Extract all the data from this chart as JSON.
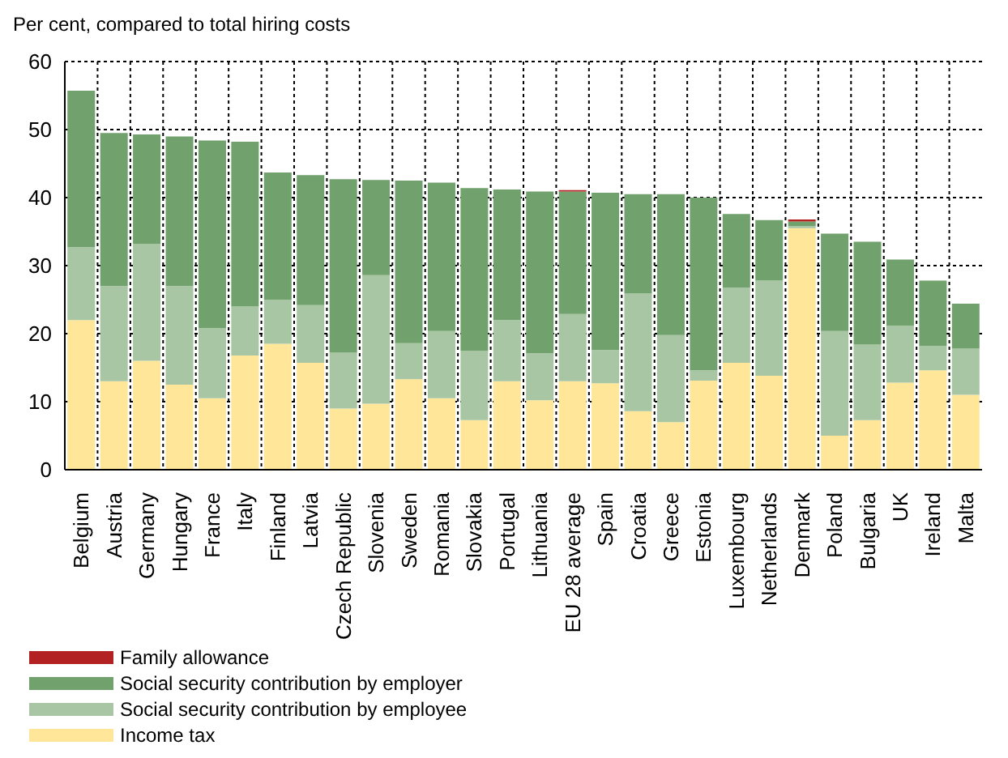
{
  "chart_data": {
    "type": "bar",
    "stacked": true,
    "ylabel": "Per cent, compared to total hiring costs",
    "categories": [
      "Belgium",
      "Austria",
      "Germany",
      "Hungary",
      "France",
      "Italy",
      "Finland",
      "Latvia",
      "Czech Republic",
      "Slovenia",
      "Sweden",
      "Romania",
      "Slovakia",
      "Portugal",
      "Lithuania",
      "EU 28 average",
      "Spain",
      "Croatia",
      "Greece",
      "Estonia",
      "Luxembourg",
      "Netherlands",
      "Denmark",
      "Poland",
      "Bulgaria",
      "UK",
      "Ireland",
      "Malta"
    ],
    "series": [
      {
        "name": "Income tax",
        "color": "#ffe699",
        "values": [
          22,
          13,
          16,
          12.5,
          10.5,
          16.8,
          18.5,
          15.7,
          9,
          9.7,
          13.3,
          10.5,
          7.3,
          13.0,
          10.2,
          13.0,
          12.7,
          8.6,
          7.0,
          13.1,
          15.7,
          13.8,
          35.5,
          5.0,
          7.3,
          12.8,
          14.6,
          11.0
        ]
      },
      {
        "name": "Social security contribution by employee",
        "color": "#a9c6a4",
        "values": [
          10.7,
          14,
          17.2,
          14.5,
          10.3,
          7.2,
          6.5,
          8.5,
          8.2,
          18.9,
          5.3,
          9.9,
          10.2,
          9.0,
          6.9,
          9.9,
          4.9,
          17.3,
          12.8,
          1.5,
          11.1,
          14.0,
          0.3,
          15.4,
          11.1,
          8.4,
          3.6,
          6.8
        ]
      },
      {
        "name": "Social security contribution by employer",
        "color": "#71a26d",
        "values": [
          23,
          22.5,
          16.1,
          22,
          27.6,
          24.2,
          18.7,
          19.1,
          25.5,
          14,
          23.9,
          21.8,
          23.9,
          19.2,
          23.8,
          18.0,
          23.1,
          14.6,
          20.7,
          25.4,
          10.8,
          8.9,
          0.7,
          14.3,
          15.1,
          9.7,
          9.6,
          6.6
        ]
      },
      {
        "name": "Family allowance",
        "color": "#b22222",
        "values": [
          0,
          0,
          0,
          0,
          0,
          0,
          0,
          0,
          0,
          0,
          0,
          0,
          0,
          0,
          0,
          0.2,
          0,
          0,
          0,
          0,
          0,
          0,
          0.3,
          0,
          0,
          0,
          0,
          0
        ]
      }
    ],
    "ylim": [
      0,
      60
    ],
    "yticks": [
      0,
      10,
      20,
      30,
      40,
      50,
      60
    ],
    "grid": true,
    "legend": "bottom left"
  }
}
